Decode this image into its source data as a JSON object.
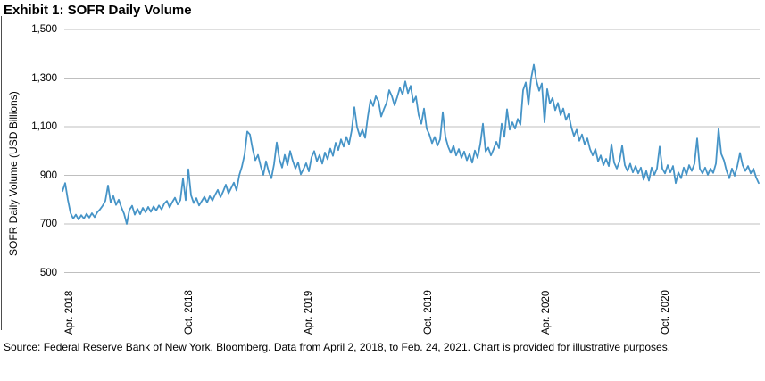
{
  "title": "Exhibit 1: SOFR Daily Volume",
  "source_note": "Source: Federal Reserve Bank of New York, Bloomberg. Data from April 2, 2018, to Feb. 24, 2021. Chart is provided for illustrative purposes.",
  "chart_data": {
    "type": "line",
    "title": "Exhibit 1: SOFR Daily Volume",
    "xlabel": "",
    "ylabel": "SOFR Daily Volume (USD Billions)",
    "ylim": [
      500,
      1500
    ],
    "x_range": [
      "April 2, 2018",
      "Feb. 24, 2021"
    ],
    "grid": "horizontal",
    "legend": "none",
    "line_color": "#4694c7",
    "gridline_color": "#bfbfbf",
    "y_ticks": [
      {
        "label": "1,500",
        "value": 1500
      },
      {
        "label": "1,300",
        "value": 1300
      },
      {
        "label": "1,100",
        "value": 1100
      },
      {
        "label": "900",
        "value": 900
      },
      {
        "label": "700",
        "value": 700
      },
      {
        "label": "500",
        "value": 500
      }
    ],
    "x_ticks": [
      {
        "label": "Apr. 2018"
      },
      {
        "label": "Oct. 2018"
      },
      {
        "label": "Apr. 2019"
      },
      {
        "label": "Oct. 2019"
      },
      {
        "label": "Apr. 2020"
      },
      {
        "label": "Oct. 2020"
      }
    ],
    "series": [
      {
        "name": "SOFR Daily Volume (USD Billions)",
        "values": [
          835,
          868,
          800,
          745,
          722,
          738,
          718,
          736,
          722,
          742,
          726,
          744,
          728,
          748,
          760,
          775,
          795,
          858,
          788,
          815,
          778,
          800,
          768,
          742,
          700,
          758,
          775,
          738,
          762,
          740,
          766,
          748,
          770,
          750,
          772,
          755,
          776,
          760,
          784,
          795,
          768,
          790,
          808,
          780,
          798,
          888,
          798,
          925,
          818,
          786,
          806,
          776,
          794,
          812,
          788,
          814,
          796,
          820,
          840,
          810,
          834,
          862,
          826,
          848,
          870,
          838,
          900,
          936,
          986,
          1080,
          1068,
          1008,
          962,
          984,
          938,
          902,
          958,
          915,
          888,
          946,
          1035,
          966,
          932,
          984,
          942,
          1000,
          960,
          928,
          954,
          904,
          926,
          950,
          916,
          974,
          1000,
          958,
          984,
          948,
          994,
          966,
          1010,
          980,
          1034,
          1004,
          1048,
          1018,
          1058,
          1028,
          1085,
          1180,
          1098,
          1062,
          1088,
          1054,
          1140,
          1210,
          1185,
          1225,
          1205,
          1142,
          1172,
          1198,
          1250,
          1225,
          1188,
          1222,
          1260,
          1232,
          1286,
          1238,
          1268,
          1202,
          1224,
          1148,
          1112,
          1175,
          1092,
          1068,
          1032,
          1058,
          1022,
          1048,
          1160,
          1058,
          1018,
          992,
          1022,
          982,
          1008,
          972,
          998,
          962,
          988,
          952,
          1002,
          972,
          1028,
          1112,
          998,
          1014,
          982,
          1008,
          1038,
          1012,
          1112,
          1058,
          1172,
          1088,
          1118,
          1092,
          1132,
          1108,
          1250,
          1282,
          1190,
          1298,
          1355,
          1288,
          1248,
          1278,
          1118,
          1255,
          1195,
          1218,
          1168,
          1198,
          1148,
          1175,
          1128,
          1152,
          1098,
          1062,
          1088,
          1042,
          1068,
          1028,
          1052,
          1008,
          982,
          1008,
          958,
          982,
          942,
          968,
          938,
          1028,
          952,
          928,
          958,
          1022,
          942,
          918,
          948,
          912,
          938,
          908,
          932,
          882,
          918,
          878,
          932,
          902,
          928,
          1018,
          928,
          908,
          942,
          912,
          938,
          868,
          912,
          888,
          932,
          902,
          942,
          918,
          948,
          1052,
          928,
          908,
          932,
          902,
          928,
          910,
          948,
          1092,
          988,
          962,
          918,
          888,
          928,
          898,
          938,
          992,
          942,
          918,
          938,
          908,
          928,
          892,
          868
        ]
      }
    ]
  }
}
